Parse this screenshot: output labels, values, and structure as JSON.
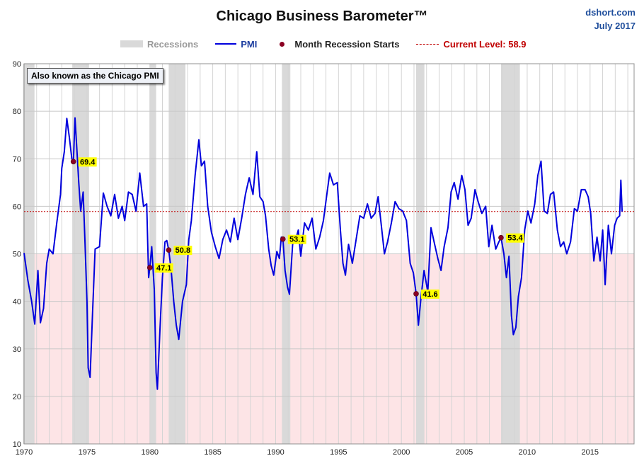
{
  "header": {
    "title": "Chicago Business Barometer™",
    "source_line1": "dshort.com",
    "source_line2": "July 2017"
  },
  "legend": {
    "recessions": "Recessions",
    "pmi": "PMI",
    "recession_start": "Month Recession Starts",
    "current": "Current Level: 58.9"
  },
  "note": "Also known as the Chicago PMI",
  "colors": {
    "pmi_line": "#0000dd",
    "recession_band": "#d9d9d9",
    "contraction_zone": "#fde4e6",
    "current_line": "#c00000",
    "marker": "#8b0022",
    "marker_label_bg": "#ffff00",
    "legend_text": "#1f3fa0",
    "legend_recession_text": "#9a9a9a"
  },
  "chart_data": {
    "type": "line",
    "title": "Chicago Business Barometer™",
    "xlim": [
      1970,
      2018.5
    ],
    "ylim": [
      10,
      90
    ],
    "x_ticks": [
      1970,
      1975,
      1980,
      1985,
      1990,
      1995,
      2000,
      2005,
      2010,
      2015
    ],
    "y_ticks": [
      10,
      20,
      30,
      40,
      50,
      60,
      70,
      80,
      90
    ],
    "grid": "vertical and horizontal",
    "contraction_threshold": 50,
    "current_level": 58.9,
    "recessions": [
      [
        1969.92,
        1970.83
      ],
      [
        1973.83,
        1975.17
      ],
      [
        1980.0,
        1980.5
      ],
      [
        1981.5,
        1982.83
      ],
      [
        1990.5,
        1991.17
      ],
      [
        2001.17,
        2001.83
      ],
      [
        2007.92,
        2009.42
      ]
    ],
    "recession_start_markers": [
      {
        "x": 1973.92,
        "value": 69.4,
        "label": "69.4"
      },
      {
        "x": 1980.0,
        "value": 47.1,
        "label": "47.1"
      },
      {
        "x": 1981.5,
        "value": 50.8,
        "label": "50.8"
      },
      {
        "x": 1990.58,
        "value": 53.1,
        "label": "53.1"
      },
      {
        "x": 2001.17,
        "value": 41.6,
        "label": "41.6"
      },
      {
        "x": 2007.92,
        "value": 53.4,
        "label": "53.4"
      }
    ],
    "series": [
      {
        "name": "PMI",
        "points": [
          [
            1970.0,
            50.2
          ],
          [
            1970.3,
            44.5
          ],
          [
            1970.6,
            40.0
          ],
          [
            1970.85,
            35.2
          ],
          [
            1971.1,
            46.5
          ],
          [
            1971.3,
            35.5
          ],
          [
            1971.55,
            38.5
          ],
          [
            1971.8,
            48.0
          ],
          [
            1972.0,
            51.0
          ],
          [
            1972.3,
            50.0
          ],
          [
            1972.6,
            56.5
          ],
          [
            1972.9,
            62.5
          ],
          [
            1973.0,
            68.0
          ],
          [
            1973.2,
            71.5
          ],
          [
            1973.4,
            78.5
          ],
          [
            1973.6,
            74.5
          ],
          [
            1973.8,
            70.0
          ],
          [
            1973.92,
            69.4
          ],
          [
            1974.05,
            78.6
          ],
          [
            1974.2,
            72.0
          ],
          [
            1974.35,
            65.0
          ],
          [
            1974.5,
            59.0
          ],
          [
            1974.7,
            63.0
          ],
          [
            1974.85,
            52.0
          ],
          [
            1975.0,
            40.0
          ],
          [
            1975.1,
            26.0
          ],
          [
            1975.25,
            24.0
          ],
          [
            1975.45,
            38.0
          ],
          [
            1975.65,
            51.0
          ],
          [
            1976.0,
            51.5
          ],
          [
            1976.3,
            62.8
          ],
          [
            1976.6,
            60.0
          ],
          [
            1976.9,
            58.0
          ],
          [
            1977.2,
            62.5
          ],
          [
            1977.5,
            57.5
          ],
          [
            1977.8,
            60.0
          ],
          [
            1978.0,
            57.0
          ],
          [
            1978.3,
            63.0
          ],
          [
            1978.6,
            62.5
          ],
          [
            1978.9,
            59.0
          ],
          [
            1979.2,
            67.0
          ],
          [
            1979.5,
            60.0
          ],
          [
            1979.75,
            60.5
          ],
          [
            1979.9,
            45.0
          ],
          [
            1980.0,
            47.1
          ],
          [
            1980.15,
            51.5
          ],
          [
            1980.35,
            42.5
          ],
          [
            1980.5,
            25.0
          ],
          [
            1980.6,
            21.5
          ],
          [
            1980.8,
            34.0
          ],
          [
            1981.0,
            45.0
          ],
          [
            1981.2,
            52.5
          ],
          [
            1981.35,
            52.8
          ],
          [
            1981.5,
            50.8
          ],
          [
            1981.7,
            46.5
          ],
          [
            1981.9,
            40.0
          ],
          [
            1982.1,
            35.0
          ],
          [
            1982.3,
            32.0
          ],
          [
            1982.6,
            40.0
          ],
          [
            1982.9,
            43.5
          ],
          [
            1983.1,
            53.0
          ],
          [
            1983.3,
            57.0
          ],
          [
            1983.6,
            66.5
          ],
          [
            1983.9,
            74.0
          ],
          [
            1984.1,
            68.5
          ],
          [
            1984.35,
            69.5
          ],
          [
            1984.6,
            60.0
          ],
          [
            1984.9,
            54.5
          ],
          [
            1985.2,
            51.5
          ],
          [
            1985.5,
            49.0
          ],
          [
            1985.8,
            53.0
          ],
          [
            1986.1,
            55.0
          ],
          [
            1986.4,
            52.5
          ],
          [
            1986.7,
            57.5
          ],
          [
            1987.0,
            53.0
          ],
          [
            1987.3,
            57.5
          ],
          [
            1987.6,
            62.5
          ],
          [
            1987.9,
            66.0
          ],
          [
            1988.2,
            62.5
          ],
          [
            1988.5,
            71.5
          ],
          [
            1988.75,
            62.0
          ],
          [
            1989.0,
            61.0
          ],
          [
            1989.2,
            58.0
          ],
          [
            1989.45,
            51.0
          ],
          [
            1989.65,
            47.5
          ],
          [
            1989.85,
            45.5
          ],
          [
            1990.1,
            50.5
          ],
          [
            1990.3,
            49.0
          ],
          [
            1990.45,
            53.5
          ],
          [
            1990.58,
            53.1
          ],
          [
            1990.75,
            46.5
          ],
          [
            1990.95,
            43.0
          ],
          [
            1991.1,
            41.5
          ],
          [
            1991.35,
            52.0
          ],
          [
            1991.6,
            53.0
          ],
          [
            1991.8,
            55.0
          ],
          [
            1992.0,
            49.5
          ],
          [
            1992.3,
            56.5
          ],
          [
            1992.6,
            55.0
          ],
          [
            1992.9,
            57.5
          ],
          [
            1993.2,
            51.0
          ],
          [
            1993.5,
            53.5
          ],
          [
            1993.8,
            57.0
          ],
          [
            1994.05,
            62.0
          ],
          [
            1994.3,
            67.0
          ],
          [
            1994.6,
            64.5
          ],
          [
            1994.9,
            65.0
          ],
          [
            1995.15,
            55.0
          ],
          [
            1995.35,
            48.0
          ],
          [
            1995.55,
            45.5
          ],
          [
            1995.8,
            52.0
          ],
          [
            1996.1,
            48.0
          ],
          [
            1996.4,
            53.0
          ],
          [
            1996.7,
            58.0
          ],
          [
            1997.0,
            57.5
          ],
          [
            1997.3,
            60.5
          ],
          [
            1997.6,
            57.5
          ],
          [
            1997.9,
            58.5
          ],
          [
            1998.15,
            62.0
          ],
          [
            1998.4,
            56.0
          ],
          [
            1998.65,
            50.0
          ],
          [
            1998.9,
            52.5
          ],
          [
            1999.2,
            56.5
          ],
          [
            1999.5,
            61.0
          ],
          [
            1999.8,
            59.5
          ],
          [
            2000.1,
            59.0
          ],
          [
            2000.4,
            57.0
          ],
          [
            2000.7,
            48.0
          ],
          [
            2000.95,
            46.0
          ],
          [
            2001.17,
            41.6
          ],
          [
            2001.35,
            35.0
          ],
          [
            2001.55,
            40.5
          ],
          [
            2001.8,
            46.5
          ],
          [
            2002.1,
            42.0
          ],
          [
            2002.35,
            55.5
          ],
          [
            2002.6,
            52.5
          ],
          [
            2002.9,
            49.0
          ],
          [
            2003.15,
            46.5
          ],
          [
            2003.4,
            51.5
          ],
          [
            2003.7,
            55.5
          ],
          [
            2003.95,
            63.0
          ],
          [
            2004.2,
            65.0
          ],
          [
            2004.5,
            61.5
          ],
          [
            2004.8,
            66.5
          ],
          [
            2005.05,
            63.5
          ],
          [
            2005.3,
            56.0
          ],
          [
            2005.55,
            57.5
          ],
          [
            2005.85,
            63.5
          ],
          [
            2006.1,
            61.0
          ],
          [
            2006.4,
            58.5
          ],
          [
            2006.7,
            60.0
          ],
          [
            2006.95,
            51.5
          ],
          [
            2007.2,
            56.0
          ],
          [
            2007.5,
            51.0
          ],
          [
            2007.75,
            52.5
          ],
          [
            2007.92,
            53.4
          ],
          [
            2008.15,
            50.0
          ],
          [
            2008.35,
            45.0
          ],
          [
            2008.55,
            49.5
          ],
          [
            2008.75,
            37.0
          ],
          [
            2008.9,
            33.0
          ],
          [
            2009.1,
            34.5
          ],
          [
            2009.3,
            41.0
          ],
          [
            2009.55,
            45.0
          ],
          [
            2009.8,
            55.0
          ],
          [
            2010.05,
            59.0
          ],
          [
            2010.3,
            56.5
          ],
          [
            2010.6,
            60.5
          ],
          [
            2010.85,
            66.5
          ],
          [
            2011.1,
            69.5
          ],
          [
            2011.35,
            59.0
          ],
          [
            2011.6,
            58.5
          ],
          [
            2011.85,
            62.5
          ],
          [
            2012.1,
            63.0
          ],
          [
            2012.4,
            55.0
          ],
          [
            2012.65,
            51.5
          ],
          [
            2012.9,
            52.5
          ],
          [
            2013.15,
            50.0
          ],
          [
            2013.45,
            52.5
          ],
          [
            2013.75,
            59.5
          ],
          [
            2014.0,
            59.0
          ],
          [
            2014.3,
            63.5
          ],
          [
            2014.6,
            63.5
          ],
          [
            2014.85,
            62.0
          ],
          [
            2015.05,
            58.5
          ],
          [
            2015.3,
            48.5
          ],
          [
            2015.55,
            53.5
          ],
          [
            2015.8,
            48.5
          ],
          [
            2016.0,
            55.0
          ],
          [
            2016.2,
            43.5
          ],
          [
            2016.45,
            56.0
          ],
          [
            2016.7,
            50.0
          ],
          [
            2016.95,
            56.0
          ],
          [
            2017.15,
            57.5
          ],
          [
            2017.35,
            58.0
          ],
          [
            2017.45,
            65.5
          ],
          [
            2017.55,
            58.9
          ]
        ]
      }
    ]
  }
}
